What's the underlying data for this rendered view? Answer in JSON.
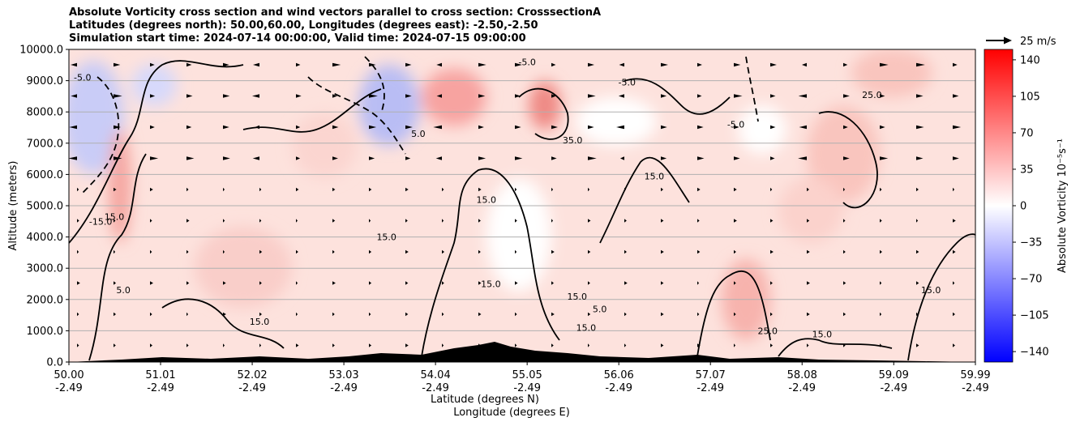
{
  "chart_data": {
    "type": "heatmap",
    "title_lines": [
      "Absolute Vorticity cross section and wind vectors parallel to cross section: CrosssectionA",
      "Latitudes (degrees north): 50.00,60.00, Longitudes (degrees east): -2.50,-2.50",
      "Simulation start time: 2024-07-14 00:00:00, Valid time: 2024-07-15 09:00:00"
    ],
    "ylabel": "Altitude (meters)",
    "xlabel_lines": [
      "Latitude (degrees N)",
      "Longitude (degrees E)"
    ],
    "ylim": [
      0,
      10000
    ],
    "y_ticks": [
      {
        "value": 0,
        "label": "0.0"
      },
      {
        "value": 1000,
        "label": "1000.0"
      },
      {
        "value": 2000,
        "label": "2000.0"
      },
      {
        "value": 3000,
        "label": "3000.0"
      },
      {
        "value": 4000,
        "label": "4000.0"
      },
      {
        "value": 5000,
        "label": "5000.0"
      },
      {
        "value": 6000,
        "label": "6000.0"
      },
      {
        "value": 7000,
        "label": "7000.0"
      },
      {
        "value": 8000,
        "label": "8000.0"
      },
      {
        "value": 9000,
        "label": "9000.0"
      },
      {
        "value": 10000,
        "label": "10000.0"
      }
    ],
    "xlim": [
      50.0,
      59.99
    ],
    "x_ticks": [
      {
        "lat": 50.0,
        "lat_label": "50.00",
        "lon_label": "-2.49"
      },
      {
        "lat": 51.01,
        "lat_label": "51.01",
        "lon_label": "-2.49"
      },
      {
        "lat": 52.02,
        "lat_label": "52.02",
        "lon_label": "-2.49"
      },
      {
        "lat": 53.03,
        "lat_label": "53.03",
        "lon_label": "-2.49"
      },
      {
        "lat": 54.04,
        "lat_label": "54.04",
        "lon_label": "-2.49"
      },
      {
        "lat": 55.05,
        "lat_label": "55.05",
        "lon_label": "-2.49"
      },
      {
        "lat": 56.06,
        "lat_label": "56.06",
        "lon_label": "-2.49"
      },
      {
        "lat": 57.07,
        "lat_label": "57.07",
        "lon_label": "-2.49"
      },
      {
        "lat": 58.08,
        "lat_label": "58.08",
        "lon_label": "-2.49"
      },
      {
        "lat": 59.09,
        "lat_label": "59.09",
        "lon_label": "-2.49"
      },
      {
        "lat": 59.99,
        "lat_label": "59.99",
        "lon_label": "-2.49"
      }
    ],
    "grid": "horizontal",
    "colorbar": {
      "label": "Absolute Vorticity 10⁻⁵s⁻¹",
      "range": [
        -150,
        150
      ],
      "ticks": [
        140,
        105,
        70,
        35,
        0,
        -35,
        -70,
        -105,
        -140
      ],
      "colors": {
        "low": "#0000ff",
        "mid": "#ffffff",
        "high": "#ff0000"
      }
    },
    "quiver_key": {
      "label": "25 m/s",
      "value": 25
    },
    "contour_labels": [
      {
        "text": "15.0",
        "lat": 54.6,
        "alt": 5200
      },
      {
        "text": "15.0",
        "lat": 53.5,
        "alt": 4000
      },
      {
        "text": "15.0",
        "lat": 56.45,
        "alt": 5950
      },
      {
        "text": "15.0",
        "lat": 54.65,
        "alt": 2500
      },
      {
        "text": "15.0",
        "lat": 55.6,
        "alt": 2100
      },
      {
        "text": "15.0",
        "lat": 52.1,
        "alt": 1300
      },
      {
        "text": "15.0",
        "lat": 58.3,
        "alt": 900
      },
      {
        "text": "15.0",
        "lat": 55.7,
        "alt": 1100
      },
      {
        "text": "15.0",
        "lat": 50.5,
        "alt": 4650
      },
      {
        "text": "15.0",
        "lat": 59.5,
        "alt": 2300
      },
      {
        "text": "35.0",
        "lat": 55.55,
        "alt": 7100
      },
      {
        "text": "25.0",
        "lat": 58.85,
        "alt": 8550
      },
      {
        "text": "-5.0",
        "lat": 56.15,
        "alt": 8950
      },
      {
        "text": "-5.0",
        "lat": 57.35,
        "alt": 7600
      },
      {
        "text": "-5.0",
        "lat": 55.05,
        "alt": 9600
      },
      {
        "text": "5.0",
        "lat": 55.85,
        "alt": 1700
      },
      {
        "text": "5.0",
        "lat": 50.6,
        "alt": 2300
      },
      {
        "text": "5.0",
        "lat": 53.85,
        "alt": 7300
      },
      {
        "text": "-15.0",
        "lat": 50.35,
        "alt": 4500
      },
      {
        "text": "-5.0",
        "lat": 50.15,
        "alt": 9100
      },
      {
        "text": "25.0",
        "lat": 57.7,
        "alt": 1000
      }
    ]
  }
}
